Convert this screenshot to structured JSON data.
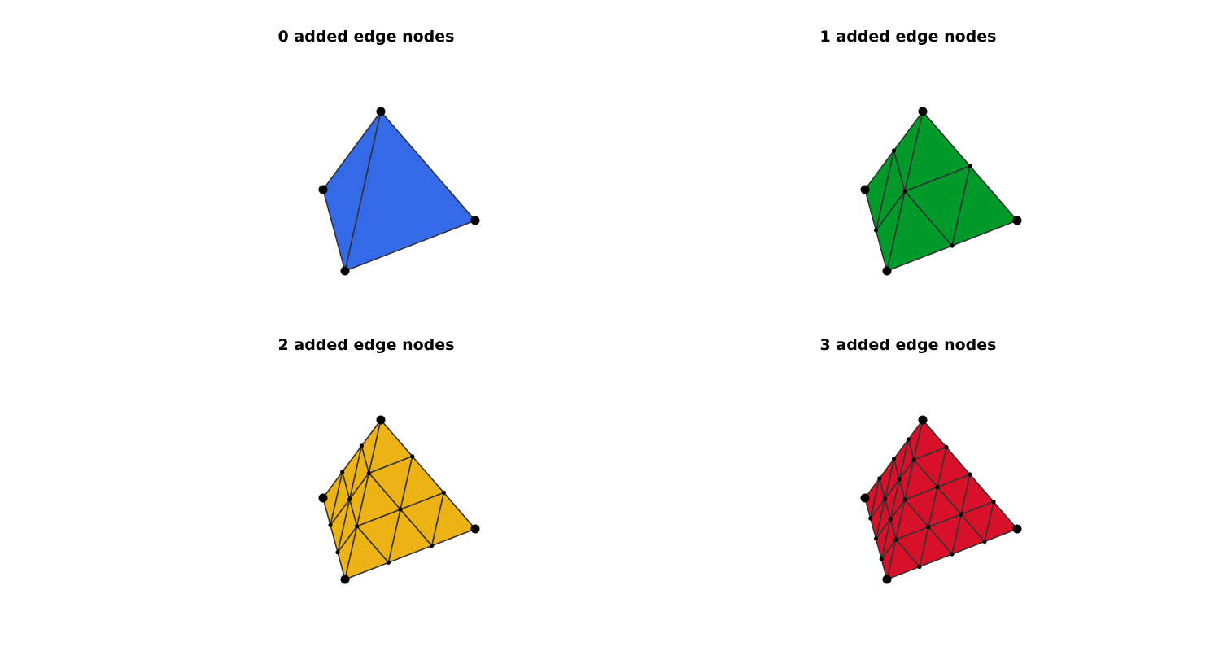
{
  "panels": [
    {
      "title": "0 added edge nodes",
      "n": 0,
      "fill": "#3469e8"
    },
    {
      "title": "1 added edge nodes",
      "n": 1,
      "fill": "#009a2b"
    },
    {
      "title": "2 added edge nodes",
      "n": 2,
      "fill": "#edb213"
    },
    {
      "title": "3 added edge nodes",
      "n": 3,
      "fill": "#d8102a"
    }
  ],
  "colors": {
    "edge": "#333333",
    "node": "#000000",
    "background": "#ffffff"
  }
}
